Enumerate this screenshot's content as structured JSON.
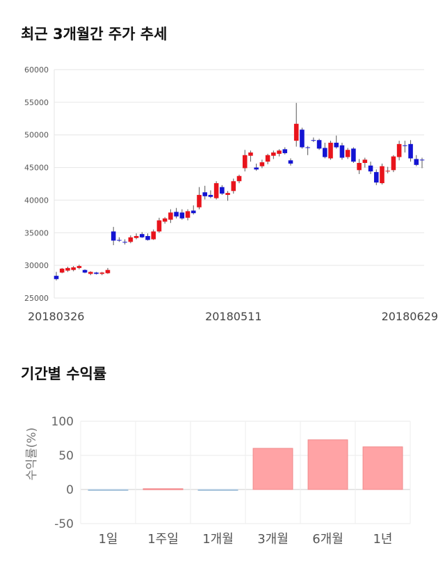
{
  "sections": {
    "price_title": "최근 3개월간 주가 추세",
    "return_title": "기간별 수익률"
  },
  "chart_data": [
    {
      "type": "candlestick",
      "ylim": [
        25000,
        60000
      ],
      "yticks": [
        25000,
        30000,
        35000,
        40000,
        45000,
        50000,
        55000,
        60000
      ],
      "xticks": [
        {
          "label": "20180326",
          "index": 0
        },
        {
          "label": "20180511",
          "index": 31
        },
        {
          "label": "20180629",
          "index": 63
        }
      ],
      "up_color": "#e8141c",
      "down_color": "#1414d2",
      "candles": [
        [
          28400,
          29000,
          27700,
          27900
        ],
        [
          28900,
          29600,
          28800,
          29500
        ],
        [
          29200,
          29800,
          29000,
          29600
        ],
        [
          29300,
          29900,
          29100,
          29700
        ],
        [
          29600,
          30100,
          29400,
          29900
        ],
        [
          29300,
          29400,
          28800,
          28900
        ],
        [
          28700,
          29100,
          28500,
          29000
        ],
        [
          28900,
          29000,
          28600,
          28700
        ],
        [
          28700,
          29000,
          28500,
          28900
        ],
        [
          28800,
          29600,
          28700,
          29300
        ],
        [
          35200,
          35900,
          33100,
          33800
        ],
        [
          33900,
          34300,
          33600,
          33800
        ],
        [
          33600,
          34000,
          33200,
          33500
        ],
        [
          33600,
          34600,
          33400,
          34300
        ],
        [
          34200,
          34900,
          34000,
          34500
        ],
        [
          34800,
          35100,
          34200,
          34300
        ],
        [
          34500,
          34900,
          33800,
          33900
        ],
        [
          34000,
          35500,
          33900,
          35200
        ],
        [
          35200,
          37300,
          35000,
          36900
        ],
        [
          36700,
          37400,
          36400,
          37200
        ],
        [
          37000,
          38600,
          36500,
          38100
        ],
        [
          38200,
          38800,
          37200,
          37500
        ],
        [
          38100,
          38600,
          37000,
          37200
        ],
        [
          37300,
          38600,
          36900,
          38300
        ],
        [
          38400,
          39200,
          37800,
          38000
        ],
        [
          38900,
          42000,
          38600,
          40800
        ],
        [
          41200,
          42200,
          40100,
          40600
        ],
        [
          40800,
          41500,
          40300,
          40500
        ],
        [
          40300,
          42900,
          40100,
          42600
        ],
        [
          42000,
          42300,
          40800,
          41000
        ],
        [
          40800,
          41400,
          39900,
          41100
        ],
        [
          41400,
          43300,
          41000,
          42900
        ],
        [
          42900,
          43900,
          42600,
          43700
        ],
        [
          44900,
          47700,
          44400,
          46900
        ],
        [
          46800,
          47600,
          45900,
          47300
        ],
        [
          45000,
          45600,
          44500,
          44700
        ],
        [
          45200,
          46200,
          44900,
          45800
        ],
        [
          45900,
          47100,
          45500,
          46900
        ],
        [
          46800,
          47600,
          46300,
          47300
        ],
        [
          47100,
          47800,
          46700,
          47600
        ],
        [
          47800,
          48100,
          47000,
          47200
        ],
        [
          46100,
          46400,
          45300,
          45600
        ],
        [
          49100,
          54900,
          48200,
          51700
        ],
        [
          50800,
          51100,
          47900,
          48100
        ],
        [
          48100,
          48300,
          46900,
          48000
        ],
        [
          49200,
          49600,
          48900,
          49100
        ],
        [
          49200,
          49400,
          47700,
          47900
        ],
        [
          48000,
          48800,
          46400,
          46600
        ],
        [
          46400,
          49100,
          46200,
          48800
        ],
        [
          48800,
          49900,
          47900,
          48100
        ],
        [
          48400,
          48800,
          46200,
          46500
        ],
        [
          46600,
          48000,
          46300,
          47700
        ],
        [
          47900,
          48100,
          45700,
          45900
        ],
        [
          44600,
          46300,
          44000,
          45700
        ],
        [
          45700,
          46500,
          45000,
          46200
        ],
        [
          45300,
          45900,
          44000,
          44400
        ],
        [
          44300,
          44700,
          42300,
          42700
        ],
        [
          42600,
          45600,
          42400,
          45200
        ],
        [
          44400,
          45100,
          44100,
          44500
        ],
        [
          44600,
          46900,
          44300,
          46700
        ],
        [
          46600,
          49100,
          46100,
          48600
        ],
        [
          48400,
          49100,
          47300,
          48300
        ],
        [
          48600,
          49200,
          45900,
          46400
        ],
        [
          46300,
          46900,
          45200,
          45400
        ],
        [
          46200,
          46500,
          44900,
          46100
        ]
      ]
    },
    {
      "type": "bar",
      "categories": [
        "1일",
        "1주일",
        "1개월",
        "3개월",
        "6개월",
        "1년"
      ],
      "values": [
        -0.5,
        1.2,
        -0.6,
        60.3,
        72.8,
        62.5
      ],
      "ylabel": "수익률(%)",
      "ylim": [
        -50,
        100
      ],
      "yticks": [
        -50,
        0,
        50,
        100
      ],
      "bar_color": "#ffa3a5",
      "bar_stroke": "#f08a8c",
      "negative_color": "#a9c4dc"
    }
  ]
}
